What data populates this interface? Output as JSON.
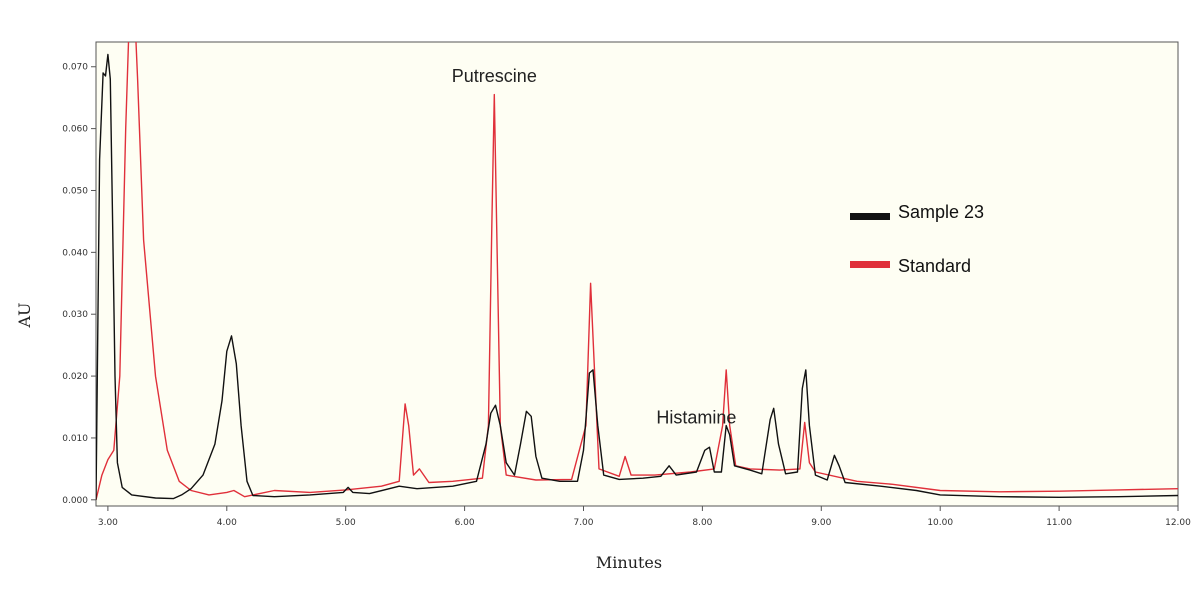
{
  "chart_data": {
    "type": "line",
    "title": "",
    "xlabel": "Minutes",
    "ylabel": "AU",
    "xlim": [
      2.9,
      12.0
    ],
    "ylim": [
      -0.001,
      0.074
    ],
    "x_ticks": [
      "3.00",
      "4.00",
      "5.00",
      "6.00",
      "7.00",
      "8.00",
      "9.00",
      "10.00",
      "11.00",
      "12.00"
    ],
    "y_ticks": [
      "0.000",
      "0.010",
      "0.020",
      "0.030",
      "0.040",
      "0.050",
      "0.060",
      "0.070"
    ],
    "legend_position": "right",
    "annotations": [
      {
        "text": "Putrescine",
        "x": 6.25,
        "y": 0.0675
      },
      {
        "text": "Histamine",
        "x": 7.95,
        "y": 0.0123
      }
    ],
    "series": [
      {
        "name": "Sample 23",
        "color": "#111111",
        "points": [
          [
            2.9,
            0.0
          ],
          [
            2.93,
            0.055
          ],
          [
            2.96,
            0.069
          ],
          [
            2.98,
            0.0685
          ],
          [
            3.0,
            0.072
          ],
          [
            3.02,
            0.068
          ],
          [
            3.04,
            0.045
          ],
          [
            3.06,
            0.02
          ],
          [
            3.08,
            0.006
          ],
          [
            3.12,
            0.002
          ],
          [
            3.2,
            0.0008
          ],
          [
            3.4,
            0.0003
          ],
          [
            3.55,
            0.0002
          ],
          [
            3.62,
            0.0008
          ],
          [
            3.7,
            0.0018
          ],
          [
            3.8,
            0.004
          ],
          [
            3.9,
            0.009
          ],
          [
            3.96,
            0.016
          ],
          [
            4.0,
            0.024
          ],
          [
            4.04,
            0.0265
          ],
          [
            4.08,
            0.022
          ],
          [
            4.12,
            0.012
          ],
          [
            4.17,
            0.003
          ],
          [
            4.22,
            0.0007
          ],
          [
            4.4,
            0.0005
          ],
          [
            4.7,
            0.0008
          ],
          [
            4.98,
            0.0012
          ],
          [
            5.02,
            0.002
          ],
          [
            5.06,
            0.0012
          ],
          [
            5.2,
            0.001
          ],
          [
            5.45,
            0.0022
          ],
          [
            5.6,
            0.0018
          ],
          [
            5.9,
            0.0022
          ],
          [
            6.1,
            0.003
          ],
          [
            6.18,
            0.009
          ],
          [
            6.22,
            0.014
          ],
          [
            6.26,
            0.0153
          ],
          [
            6.3,
            0.012
          ],
          [
            6.35,
            0.006
          ],
          [
            6.42,
            0.004
          ],
          [
            6.47,
            0.009
          ],
          [
            6.52,
            0.0143
          ],
          [
            6.56,
            0.0135
          ],
          [
            6.6,
            0.007
          ],
          [
            6.65,
            0.0035
          ],
          [
            6.8,
            0.003
          ],
          [
            6.95,
            0.003
          ],
          [
            7.0,
            0.008
          ],
          [
            7.05,
            0.0205
          ],
          [
            7.08,
            0.021
          ],
          [
            7.12,
            0.012
          ],
          [
            7.17,
            0.004
          ],
          [
            7.3,
            0.0033
          ],
          [
            7.5,
            0.0035
          ],
          [
            7.65,
            0.0038
          ],
          [
            7.72,
            0.0055
          ],
          [
            7.78,
            0.004
          ],
          [
            7.95,
            0.0045
          ],
          [
            8.02,
            0.008
          ],
          [
            8.06,
            0.0085
          ],
          [
            8.1,
            0.0045
          ],
          [
            8.16,
            0.0045
          ],
          [
            8.2,
            0.012
          ],
          [
            8.23,
            0.0105
          ],
          [
            8.27,
            0.0055
          ],
          [
            8.4,
            0.0048
          ],
          [
            8.5,
            0.0042
          ],
          [
            8.57,
            0.013
          ],
          [
            8.6,
            0.0148
          ],
          [
            8.64,
            0.009
          ],
          [
            8.7,
            0.0042
          ],
          [
            8.8,
            0.0045
          ],
          [
            8.84,
            0.018
          ],
          [
            8.87,
            0.021
          ],
          [
            8.9,
            0.012
          ],
          [
            8.95,
            0.004
          ],
          [
            9.05,
            0.0032
          ],
          [
            9.11,
            0.0072
          ],
          [
            9.15,
            0.0055
          ],
          [
            9.2,
            0.0028
          ],
          [
            9.5,
            0.0022
          ],
          [
            9.8,
            0.0015
          ],
          [
            10.0,
            0.0008
          ],
          [
            10.5,
            0.0005
          ],
          [
            11.0,
            0.0004
          ],
          [
            11.5,
            0.0005
          ],
          [
            12.0,
            0.0007
          ]
        ]
      },
      {
        "name": "Standard",
        "color": "#e0303a",
        "points": [
          [
            2.9,
            0.0
          ],
          [
            2.95,
            0.004
          ],
          [
            3.0,
            0.0065
          ],
          [
            3.05,
            0.008
          ],
          [
            3.1,
            0.02
          ],
          [
            3.15,
            0.06
          ],
          [
            3.2,
            0.09
          ],
          [
            3.25,
            0.068
          ],
          [
            3.3,
            0.042
          ],
          [
            3.4,
            0.02
          ],
          [
            3.5,
            0.008
          ],
          [
            3.6,
            0.003
          ],
          [
            3.7,
            0.0015
          ],
          [
            3.85,
            0.0008
          ],
          [
            4.0,
            0.0012
          ],
          [
            4.06,
            0.0015
          ],
          [
            4.15,
            0.0005
          ],
          [
            4.4,
            0.0015
          ],
          [
            4.7,
            0.0012
          ],
          [
            5.0,
            0.0016
          ],
          [
            5.3,
            0.0022
          ],
          [
            5.45,
            0.003
          ],
          [
            5.5,
            0.0155
          ],
          [
            5.53,
            0.012
          ],
          [
            5.57,
            0.004
          ],
          [
            5.62,
            0.005
          ],
          [
            5.7,
            0.0028
          ],
          [
            5.9,
            0.003
          ],
          [
            6.15,
            0.0035
          ],
          [
            6.2,
            0.012
          ],
          [
            6.23,
            0.045
          ],
          [
            6.25,
            0.0655
          ],
          [
            6.27,
            0.044
          ],
          [
            6.3,
            0.012
          ],
          [
            6.35,
            0.004
          ],
          [
            6.6,
            0.0032
          ],
          [
            6.9,
            0.0033
          ],
          [
            7.02,
            0.012
          ],
          [
            7.06,
            0.035
          ],
          [
            7.09,
            0.022
          ],
          [
            7.13,
            0.005
          ],
          [
            7.3,
            0.0038
          ],
          [
            7.35,
            0.007
          ],
          [
            7.4,
            0.004
          ],
          [
            7.6,
            0.004
          ],
          [
            7.9,
            0.0045
          ],
          [
            8.1,
            0.005
          ],
          [
            8.17,
            0.012
          ],
          [
            8.2,
            0.021
          ],
          [
            8.23,
            0.012
          ],
          [
            8.28,
            0.0055
          ],
          [
            8.4,
            0.005
          ],
          [
            8.65,
            0.0048
          ],
          [
            8.82,
            0.005
          ],
          [
            8.86,
            0.0125
          ],
          [
            8.9,
            0.006
          ],
          [
            8.95,
            0.0045
          ],
          [
            9.3,
            0.003
          ],
          [
            9.6,
            0.0025
          ],
          [
            10.0,
            0.0015
          ],
          [
            10.5,
            0.0013
          ],
          [
            11.0,
            0.0014
          ],
          [
            11.5,
            0.0016
          ],
          [
            12.0,
            0.0018
          ]
        ]
      }
    ]
  }
}
